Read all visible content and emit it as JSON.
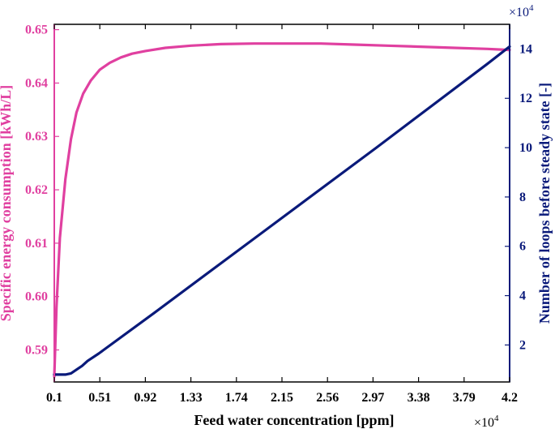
{
  "chart_data": {
    "type": "line",
    "xlabel": "Feed water concentration [ppm]",
    "x_exponent_label": "×10",
    "x_exponent": "4",
    "xlim": [
      0.1,
      4.2
    ],
    "x_ticks": [
      0.1,
      0.51,
      0.92,
      1.33,
      1.74,
      2.15,
      2.56,
      2.97,
      3.38,
      3.79,
      4.2
    ],
    "x_tick_labels": [
      "0.1",
      "0.51",
      "0.92",
      "1.33",
      "1.74",
      "2.15",
      "2.56",
      "2.97",
      "3.38",
      "3.79",
      "4.2"
    ],
    "y_left": {
      "label": "Specific energy consumption [kWh/L]",
      "ylim": [
        0.584,
        0.651
      ],
      "ticks": [
        0.59,
        0.6,
        0.61,
        0.62,
        0.63,
        0.64,
        0.65
      ],
      "tick_labels": [
        "0.59",
        "0.60",
        "0.61",
        "0.62",
        "0.63",
        "0.64",
        "0.65"
      ],
      "color": "#e040a0"
    },
    "y_right": {
      "label": "Number of loops before steady state [-]",
      "exponent_label": "×10",
      "exponent": "4",
      "ylim": [
        0.5,
        15.0
      ],
      "ticks": [
        2,
        4,
        6,
        8,
        10,
        12,
        14
      ],
      "tick_labels": [
        "2",
        "4",
        "6",
        "8",
        "10",
        "12",
        "14"
      ],
      "color": "#0a1a7a"
    },
    "series": [
      {
        "axis": "left",
        "color": "#e040a0",
        "x": [
          0.1,
          0.12,
          0.15,
          0.2,
          0.25,
          0.3,
          0.36,
          0.43,
          0.51,
          0.6,
          0.7,
          0.8,
          0.92,
          1.1,
          1.33,
          1.6,
          1.9,
          2.2,
          2.5,
          2.8,
          3.1,
          3.4,
          3.7,
          4.0,
          4.2
        ],
        "y": [
          0.585,
          0.598,
          0.611,
          0.622,
          0.6295,
          0.6345,
          0.638,
          0.6405,
          0.6425,
          0.6438,
          0.6448,
          0.6455,
          0.646,
          0.6466,
          0.647,
          0.6473,
          0.6474,
          0.6474,
          0.6474,
          0.6472,
          0.647,
          0.6468,
          0.6466,
          0.6464,
          0.6462
        ]
      },
      {
        "axis": "right",
        "color": "#0a1a7a",
        "x": [
          0.1,
          0.15,
          0.2,
          0.25,
          0.3,
          0.35,
          0.4,
          0.5,
          1.0,
          2.0,
          3.0,
          4.0,
          4.2
        ],
        "y": [
          0.8,
          0.8,
          0.8,
          0.85,
          1.0,
          1.15,
          1.35,
          1.65,
          3.3,
          6.65,
          10.0,
          13.4,
          14.1
        ]
      }
    ]
  }
}
